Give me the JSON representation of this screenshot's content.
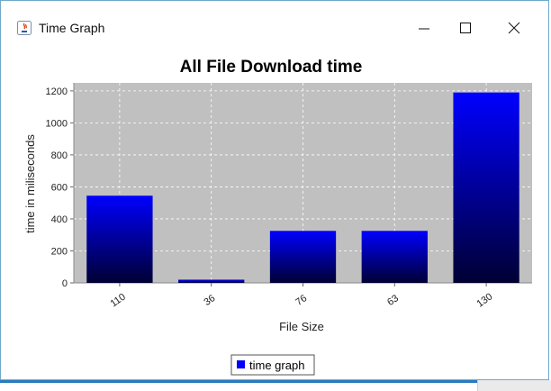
{
  "window": {
    "title": "Time Graph"
  },
  "chart_data": {
    "type": "bar",
    "title": "All File Download time",
    "xlabel": "File Size",
    "ylabel": "time in miliseconds",
    "categories": [
      "110",
      "36",
      "76",
      "63",
      "130"
    ],
    "series": [
      {
        "name": "time graph",
        "values": [
          545,
          20,
          325,
          325,
          1190
        ]
      }
    ],
    "ylim": [
      0,
      1250
    ],
    "yticks": [
      0,
      200,
      400,
      600,
      800,
      1000,
      1200
    ],
    "grid": true,
    "legend_position": "bottom",
    "colors": {
      "plot_bg": "#c0c0c0",
      "bar_top": "#0000ff",
      "bar_bottom": "#000033",
      "legend_swatch": "#0000ff"
    }
  }
}
